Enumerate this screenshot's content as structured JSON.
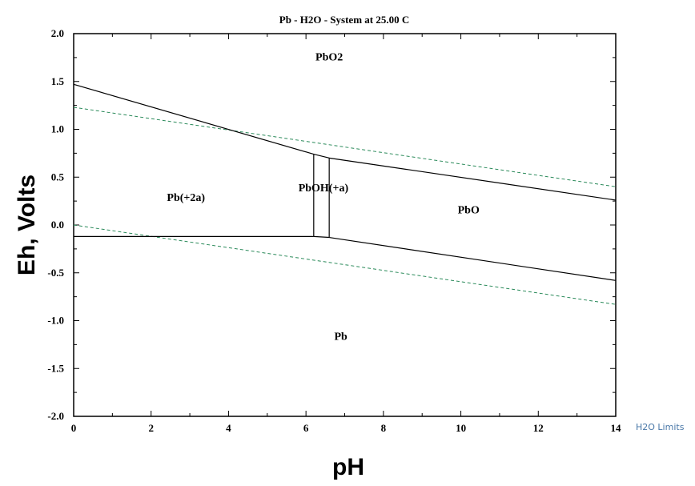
{
  "chart_data": {
    "type": "line",
    "title": "Pb - H2O - System at 25.00 C",
    "xlabel": "pH",
    "ylabel": "Eh, Volts",
    "xlim": [
      0,
      14
    ],
    "ylim": [
      -2.0,
      2.0
    ],
    "x_ticks": [
      0,
      2,
      4,
      6,
      8,
      10,
      12,
      14
    ],
    "x_tick_labels": [
      "0",
      "2",
      "4",
      "6",
      "8",
      "10",
      "12",
      "14"
    ],
    "y_ticks": [
      2.0,
      1.5,
      1.0,
      0.5,
      0.0,
      -0.5,
      -1.0,
      -1.5,
      -2.0
    ],
    "y_tick_labels": [
      "2.0",
      "1.5",
      "1.0",
      "0.5",
      "0.0",
      "-0.5",
      "-1.0",
      "-1.5",
      "-2.0"
    ],
    "regions": [
      {
        "label": "PbO2",
        "x": 6.6,
        "y": 1.72
      },
      {
        "label": "Pb(+2a)",
        "x": 2.9,
        "y": 0.25
      },
      {
        "label": "PbOH(+a)",
        "x": 6.45,
        "y": 0.35
      },
      {
        "label": "PbO",
        "x": 10.2,
        "y": 0.12
      },
      {
        "label": "Pb",
        "x": 6.9,
        "y": -1.2
      }
    ],
    "boundaries": [
      {
        "name": "Pb2+/PbO2",
        "points": [
          [
            0,
            1.47
          ],
          [
            6.2,
            0.74
          ]
        ]
      },
      {
        "name": "PbOH+/PbO2",
        "points": [
          [
            6.2,
            0.74
          ],
          [
            6.6,
            0.7
          ]
        ]
      },
      {
        "name": "PbO/PbO2",
        "points": [
          [
            6.6,
            0.7
          ],
          [
            14,
            0.26
          ]
        ]
      },
      {
        "name": "Pb/Pb2+",
        "points": [
          [
            0,
            -0.12
          ],
          [
            6.2,
            -0.12
          ]
        ]
      },
      {
        "name": "Pb/PbOH+",
        "points": [
          [
            6.2,
            -0.12
          ],
          [
            6.6,
            -0.13
          ]
        ]
      },
      {
        "name": "Pb/PbO",
        "points": [
          [
            6.6,
            -0.13
          ],
          [
            14,
            -0.58
          ]
        ]
      },
      {
        "name": "Pb2+/PbOH+",
        "points": [
          [
            6.2,
            0.74
          ],
          [
            6.2,
            -0.12
          ]
        ]
      },
      {
        "name": "PbOH+/PbO",
        "points": [
          [
            6.6,
            0.7
          ],
          [
            6.6,
            -0.13
          ]
        ]
      }
    ],
    "water_limits": {
      "label": "H2O Limits",
      "color": "#2a8a5a",
      "lines": [
        {
          "name": "upper",
          "points": [
            [
              0,
              1.23
            ],
            [
              14,
              0.4
            ]
          ]
        },
        {
          "name": "lower",
          "points": [
            [
              0,
              0.0
            ],
            [
              14,
              -0.83
            ]
          ]
        }
      ]
    },
    "grid": false
  }
}
